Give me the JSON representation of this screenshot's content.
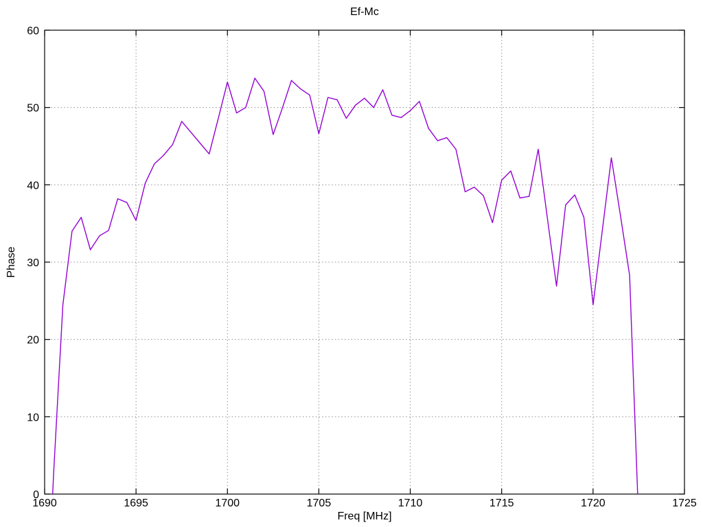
{
  "chart_data": {
    "type": "line",
    "title": "Ef-Mc",
    "xlabel": "Freq [MHz]",
    "ylabel": "Phase",
    "xlim": [
      1690,
      1725
    ],
    "ylim": [
      0,
      60
    ],
    "x_ticks": [
      1690,
      1695,
      1700,
      1705,
      1710,
      1715,
      1720,
      1725
    ],
    "y_ticks": [
      0,
      10,
      20,
      30,
      40,
      50,
      60
    ],
    "grid": true,
    "legend_position": "none",
    "background_color": "#ffffff",
    "border_color": "#000000",
    "grid_color": "#8f8f8f",
    "series": [
      {
        "name": "Ef-Mc",
        "color": "#9400d3",
        "x": [
          1690.44,
          1690.5,
          1691.0,
          1691.5,
          1692.0,
          1692.5,
          1693.0,
          1693.5,
          1694.0,
          1694.5,
          1695.0,
          1695.5,
          1696.0,
          1696.5,
          1697.0,
          1697.5,
          1698.0,
          1698.5,
          1699.0,
          1699.5,
          1700.0,
          1700.5,
          1701.0,
          1701.5,
          1702.0,
          1702.5,
          1703.0,
          1703.5,
          1704.0,
          1704.5,
          1705.0,
          1705.5,
          1706.0,
          1706.5,
          1707.0,
          1707.5,
          1708.0,
          1708.5,
          1709.0,
          1709.5,
          1710.0,
          1710.5,
          1711.0,
          1711.5,
          1712.0,
          1712.5,
          1713.0,
          1713.5,
          1714.0,
          1714.5,
          1715.0,
          1715.5,
          1716.0,
          1716.5,
          1717.0,
          1717.5,
          1718.0,
          1718.5,
          1719.0,
          1719.5,
          1720.0,
          1720.5,
          1721.0,
          1721.5,
          1722.0,
          1722.44
        ],
        "y": [
          0,
          3.0,
          24.5,
          34.0,
          35.8,
          31.6,
          33.4,
          34.1,
          38.2,
          37.7,
          35.4,
          40.2,
          42.7,
          43.8,
          45.2,
          48.2,
          46.8,
          45.4,
          44.0,
          48.6,
          53.3,
          49.3,
          50.0,
          53.8,
          52.1,
          46.5,
          49.9,
          53.5,
          52.4,
          51.6,
          46.6,
          51.3,
          51.0,
          48.6,
          50.3,
          51.2,
          50.0,
          52.3,
          49.0,
          48.7,
          49.6,
          50.8,
          47.3,
          45.7,
          46.1,
          44.6,
          39.1,
          39.7,
          38.6,
          35.1,
          40.6,
          41.8,
          38.3,
          38.5,
          44.6,
          35.7,
          26.9,
          37.4,
          38.7,
          35.8,
          24.5,
          34.0,
          43.5,
          36.0,
          28.3,
          0
        ]
      }
    ]
  }
}
